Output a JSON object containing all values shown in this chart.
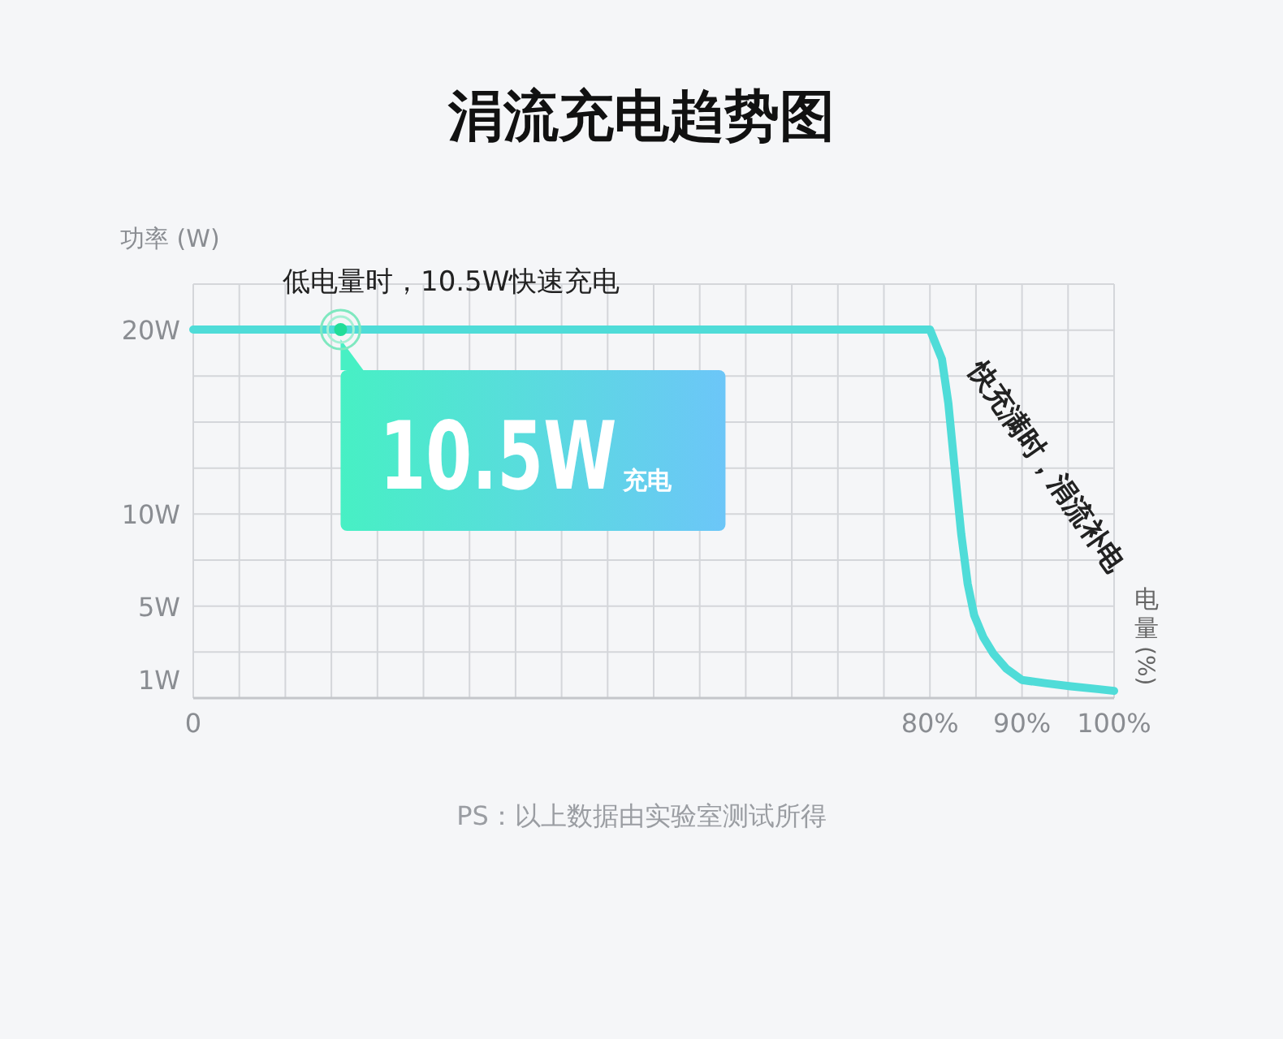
{
  "chart_data": {
    "type": "line",
    "title": "涓流充电趋势图",
    "ylabel": "功率 (W)",
    "xlabel": "电量 (%)",
    "x": [
      0,
      16,
      80,
      81.3,
      82,
      82.7,
      83.4,
      84.1,
      84.8,
      85.8,
      86.9,
      88.3,
      90,
      92.5,
      95.3,
      98.2,
      100
    ],
    "series": [
      {
        "color": "#4fdcd8",
        "values": [
          20,
          20,
          20,
          18.4,
          16,
          12.4,
          8.9,
          6.2,
          4.5,
          3.3,
          2.4,
          1.6,
          0.98,
          0.81,
          0.64,
          0.49,
          0.39
        ]
      },
      {
        "type": "scatter",
        "x": [
          16
        ],
        "values": [
          20
        ],
        "color": "#22dd99",
        "marker": "circle"
      }
    ],
    "xlim": [
      0,
      100
    ],
    "ylim": [
      0,
      20
    ],
    "xticks": [
      0,
      {
        "value": 80,
        "label": "80%"
      },
      {
        "value": 90,
        "label": "90%"
      },
      {
        "value": 100,
        "label": "100%"
      }
    ],
    "yticks": [
      {
        "value": 1,
        "label": "1W"
      },
      {
        "value": 5,
        "label": "5W"
      },
      {
        "value": 10,
        "label": "10W"
      },
      {
        "value": 20,
        "label": "20W"
      }
    ],
    "grid": true,
    "marker": "none",
    "line_style": "solid",
    "annotations": [
      "低电量时，10.5W快速充电",
      "10.5W",
      "充电",
      "快充满时，涓流补电",
      "PS：以上数据由实验室测试所得"
    ]
  }
}
